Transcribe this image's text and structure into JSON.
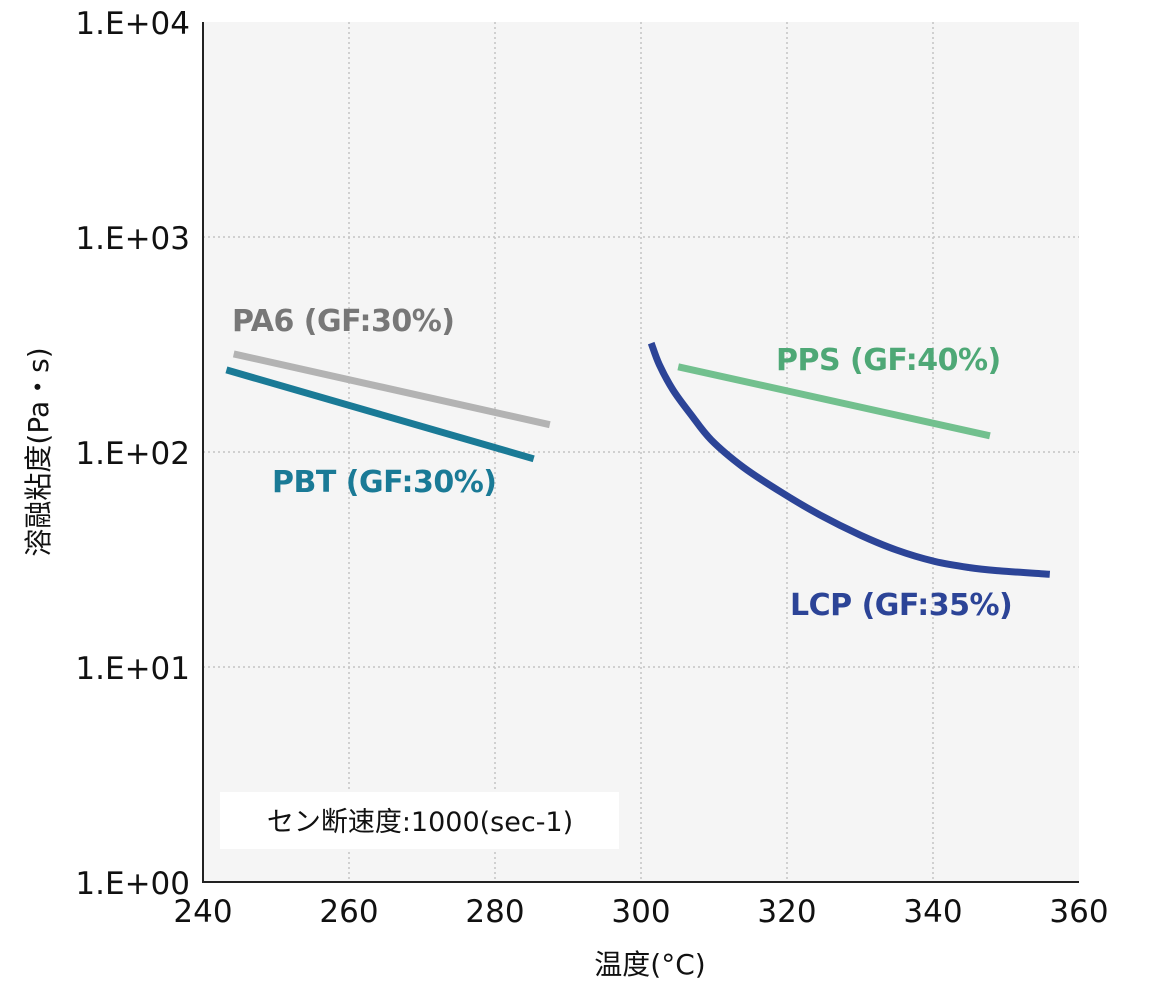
{
  "chart_data": {
    "type": "line",
    "title": "",
    "xlabel": "温度(°C)",
    "ylabel": "溶融粘度(Pa・s)",
    "xlim": [
      240,
      360
    ],
    "ylim": [
      1,
      10000
    ],
    "yscale": "log",
    "grid": true,
    "x_ticks": [
      240,
      260,
      280,
      300,
      320,
      340,
      360
    ],
    "x_tick_labels": [
      "240",
      "260",
      "280",
      "300",
      "320",
      "340",
      "360"
    ],
    "y_ticks": [
      1,
      10,
      100,
      1000,
      10000
    ],
    "y_tick_labels": [
      "1.E+00",
      "1.E+01",
      "1.E+02",
      "1.E+03",
      "1.E+04"
    ],
    "annotation": "セン断速度:1000(sec-1)",
    "series": [
      {
        "name": "PA6 (GF:30%)",
        "color": "#b3b3b3",
        "label_color": "#777777",
        "points": [
          [
            244.2,
            286
          ],
          [
            287.5,
            134
          ]
        ]
      },
      {
        "name": "PBT (GF:30%)",
        "color": "#1a7a96",
        "label_color": "#1a7a96",
        "points": [
          [
            243.2,
            241
          ],
          [
            285.3,
            93
          ]
        ]
      },
      {
        "name": "PPS (GF:40%)",
        "color": "#72c08e",
        "label_color": "#4ea876",
        "points": [
          [
            305.1,
            249
          ],
          [
            347.8,
            119
          ]
        ]
      },
      {
        "name": "LCP (GF:35%)",
        "color": "#2c4497",
        "label_color": "#2c4497",
        "points": [
          [
            301.4,
            321
          ],
          [
            302.5,
            255
          ],
          [
            304.4,
            194
          ],
          [
            306.8,
            150
          ],
          [
            309.6,
            114
          ],
          [
            314.0,
            85
          ],
          [
            319.2,
            65
          ],
          [
            324.5,
            51
          ],
          [
            330.1,
            41
          ],
          [
            335.0,
            35
          ],
          [
            340.2,
            31
          ],
          [
            345.0,
            29
          ],
          [
            349.2,
            28
          ],
          [
            356.0,
            27
          ]
        ]
      }
    ]
  }
}
